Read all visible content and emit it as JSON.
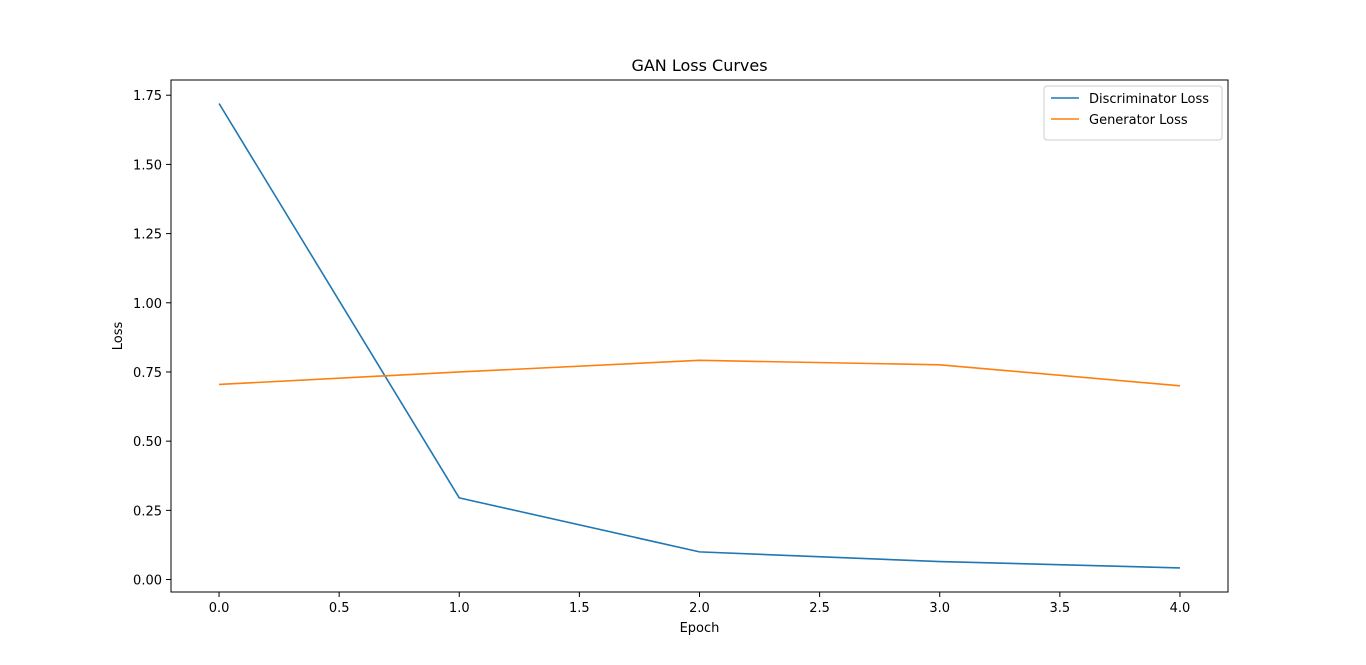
{
  "chart_data": {
    "type": "line",
    "title": "GAN Loss Curves",
    "xlabel": "Epoch",
    "ylabel": "Loss",
    "x": [
      0,
      1,
      2,
      3,
      4
    ],
    "xlim": [
      -0.2,
      4.2
    ],
    "ylim": [
      -0.045,
      1.805
    ],
    "xticks": [
      0.0,
      0.5,
      1.0,
      1.5,
      2.0,
      2.5,
      3.0,
      3.5,
      4.0
    ],
    "xtick_labels": [
      "0.0",
      "0.5",
      "1.0",
      "1.5",
      "2.0",
      "2.5",
      "3.0",
      "3.5",
      "4.0"
    ],
    "yticks": [
      0.0,
      0.25,
      0.5,
      0.75,
      1.0,
      1.25,
      1.5,
      1.75
    ],
    "ytick_labels": [
      "0.00",
      "0.25",
      "0.50",
      "0.75",
      "1.00",
      "1.25",
      "1.50",
      "1.75"
    ],
    "grid": false,
    "legend_position": "top-right",
    "series": [
      {
        "name": "Discriminator Loss",
        "color": "#1f77b4",
        "values": [
          1.72,
          0.295,
          0.1,
          0.065,
          0.042
        ]
      },
      {
        "name": "Generator Loss",
        "color": "#ff7f0e",
        "values": [
          0.705,
          0.75,
          0.792,
          0.776,
          0.7
        ]
      }
    ]
  }
}
